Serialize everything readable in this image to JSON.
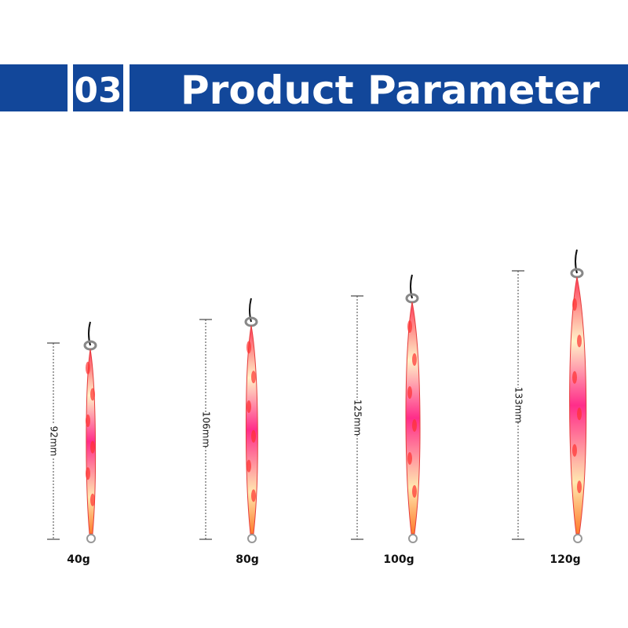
{
  "header": {
    "number": "03",
    "title": "Product Parameter"
  },
  "products": [
    {
      "length": "92mm",
      "weight": "40g"
    },
    {
      "length": "106mm",
      "weight": "80g"
    },
    {
      "length": "125mm",
      "weight": "100g"
    },
    {
      "length": "133mm",
      "weight": "120g"
    }
  ]
}
